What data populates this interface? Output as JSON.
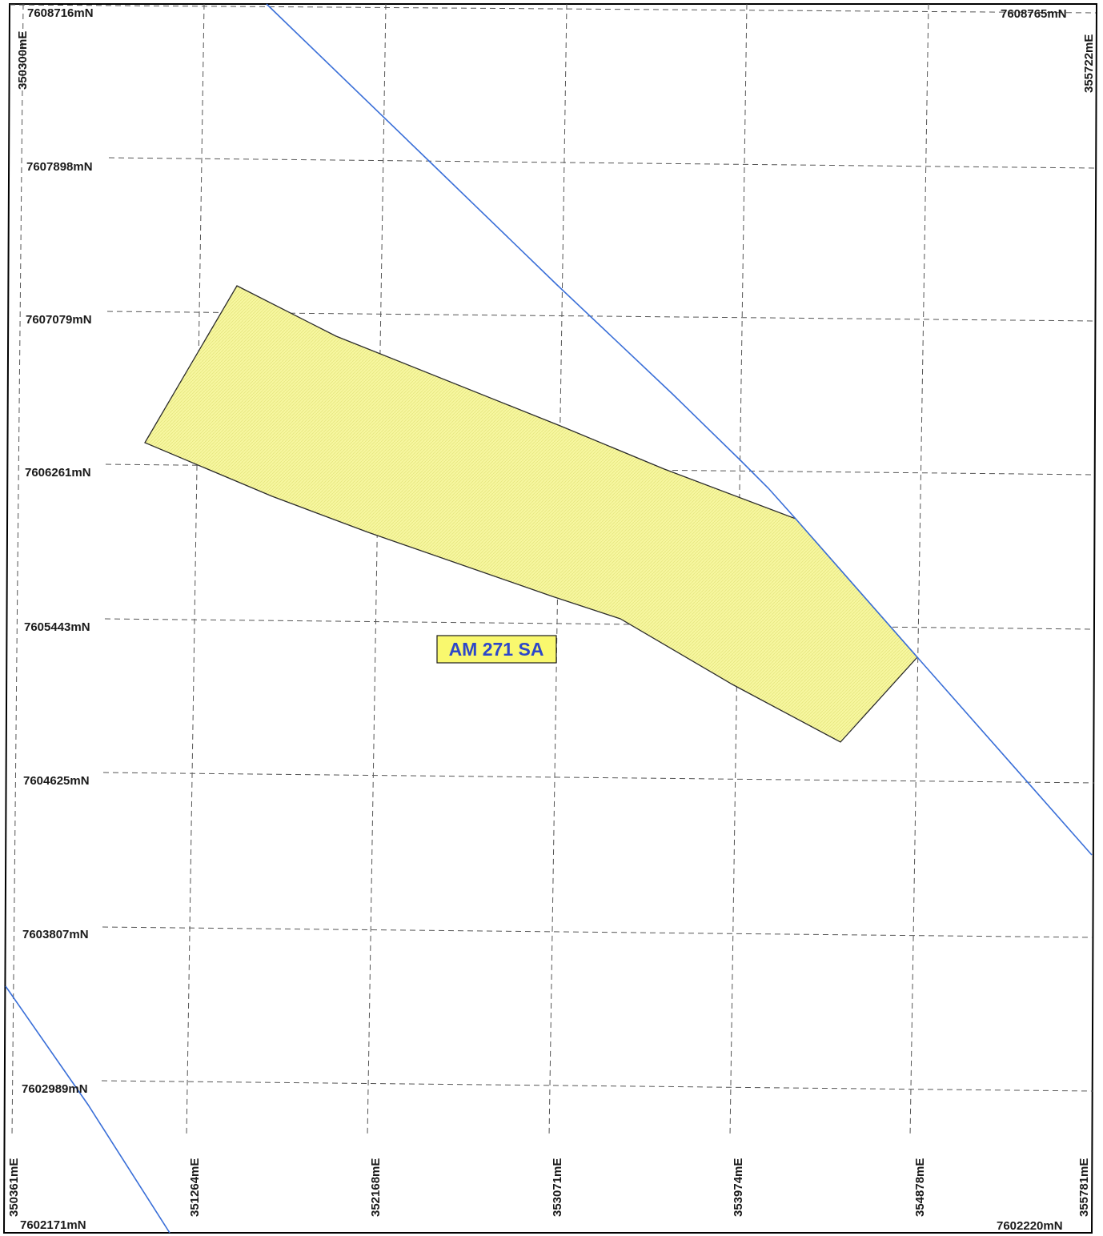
{
  "map": {
    "colors": {
      "frame": "#000000",
      "grid": "#555555",
      "road": "#3a6fd8",
      "parcel_fill": "#f7f7a0",
      "parcel_stroke": "#2b2b2b",
      "tag_fill": "#f9f86e",
      "tag_text": "#2d47c9"
    },
    "northing_labels_left": [
      "7608716mN",
      "7607898mN",
      "7607079mN",
      "7606261mN",
      "7605443mN",
      "7604625mN",
      "7603807mN",
      "7602989mN",
      "7602171mN"
    ],
    "northing_labels_right": [
      "7608765mN",
      "7602220mN"
    ],
    "easting_labels_bottom": [
      "350361mE",
      "351264mE",
      "352168mE",
      "353071mE",
      "353974mE",
      "354878mE",
      "355781mE"
    ],
    "easting_labels_top": [
      "350300mE",
      "355722mE"
    ],
    "parcel_label": "AM 271 SA",
    "icons": [
      "road-line",
      "parcel-polygon"
    ]
  }
}
